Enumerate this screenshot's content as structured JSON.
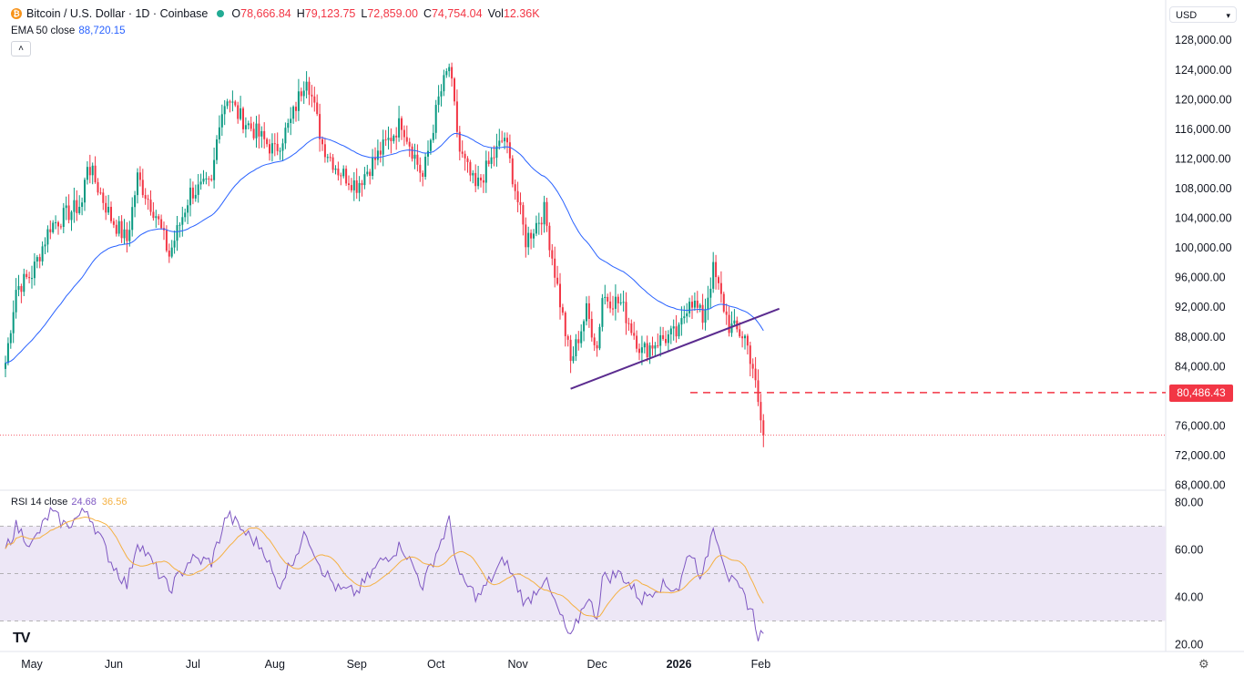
{
  "header": {
    "symbol_line": "Bitcoin / U.S. Dollar · 1D · Coinbase",
    "open_label": "O",
    "open": "78,666.84",
    "high_label": "H",
    "high": "79,123.75",
    "low_label": "L",
    "low": "72,859.00",
    "close_label": "C",
    "close": "74,754.04",
    "vol_label": "Vol",
    "vol": "12.36K",
    "coin_icon": "bitcoin-icon"
  },
  "ema": {
    "label": "EMA 50 close",
    "value": "88,720.15"
  },
  "currency": {
    "label": "USD"
  },
  "rsi": {
    "label": "RSI 14 close",
    "value": "24.68",
    "ma_value": "36.56"
  },
  "price_tag": "80,486.43",
  "colors": {
    "up": "#089981",
    "down": "#f23645",
    "ema": "#2962ff",
    "rsi": "#7e57c2",
    "rsi_ma": "#f5b041",
    "trendline": "#5b2c8f",
    "rsi_band": "#ede7f6"
  },
  "chart_data": [
    {
      "type": "candlestick",
      "title": "Bitcoin / U.S. Dollar · 1D · Coinbase",
      "y_ticks": [
        "128,000.00",
        "124,000.00",
        "120,000.00",
        "116,000.00",
        "112,000.00",
        "108,000.00",
        "104,000.00",
        "100,000.00",
        "96,000.00",
        "92,000.00",
        "88,000.00",
        "84,000.00",
        "76,000.00",
        "72,000.00",
        "68,000.00"
      ],
      "ylim": [
        68000,
        128000
      ],
      "x_ticks": [
        "May",
        "Jun",
        "Jul",
        "Aug",
        "Sep",
        "Oct",
        "Nov",
        "Dec",
        "2026",
        "Feb"
      ],
      "anchors": [
        [
          "2025-04-21",
          84500
        ],
        [
          "2025-04-25",
          94500
        ],
        [
          "2025-05-01",
          96500
        ],
        [
          "2025-05-08",
          103000
        ],
        [
          "2025-05-12",
          104000
        ],
        [
          "2025-05-20",
          106000
        ],
        [
          "2025-05-22",
          111500
        ],
        [
          "2025-05-31",
          104000
        ],
        [
          "2025-06-06",
          101000
        ],
        [
          "2025-06-10",
          109500
        ],
        [
          "2025-06-17",
          104500
        ],
        [
          "2025-06-22",
          99000
        ],
        [
          "2025-06-30",
          107500
        ],
        [
          "2025-07-08",
          108500
        ],
        [
          "2025-07-11",
          117500
        ],
        [
          "2025-07-14",
          120500
        ],
        [
          "2025-07-18",
          118000
        ],
        [
          "2025-08-01",
          113000
        ],
        [
          "2025-08-07",
          117000
        ],
        [
          "2025-08-13",
          123500
        ],
        [
          "2025-08-19",
          114000
        ],
        [
          "2025-08-25",
          110500
        ],
        [
          "2025-09-01",
          108500
        ],
        [
          "2025-09-10",
          113000
        ],
        [
          "2025-09-18",
          117000
        ],
        [
          "2025-09-26",
          109500
        ],
        [
          "2025-10-02",
          120000
        ],
        [
          "2025-10-06",
          124500
        ],
        [
          "2025-10-10",
          113000
        ],
        [
          "2025-10-16",
          108000
        ],
        [
          "2025-10-27",
          115000
        ],
        [
          "2025-11-04",
          101000
        ],
        [
          "2025-11-11",
          105000
        ],
        [
          "2025-11-21",
          84500
        ],
        [
          "2025-11-27",
          91500
        ],
        [
          "2025-12-01",
          86500
        ],
        [
          "2025-12-03",
          93500
        ],
        [
          "2025-12-10",
          92500
        ],
        [
          "2025-12-18",
          86000
        ],
        [
          "2025-12-24",
          87500
        ],
        [
          "2026-01-01",
          88500
        ],
        [
          "2026-01-05",
          93500
        ],
        [
          "2026-01-10",
          90500
        ],
        [
          "2026-01-14",
          97000
        ],
        [
          "2026-01-20",
          89500
        ],
        [
          "2026-01-26",
          88000
        ],
        [
          "2026-01-29",
          84000
        ],
        [
          "2026-01-31",
          78600
        ],
        [
          "2026-02-02",
          74754
        ]
      ],
      "ema50_series": {
        "name": "EMA 50 close",
        "last": 88720.15
      },
      "trendline": [
        [
          "2025-11-21",
          81000
        ],
        [
          "2026-02-08",
          91800
        ]
      ],
      "support_level": 80486.43,
      "last_price_line": 74754.04
    },
    {
      "type": "line",
      "title": "RSI 14 close",
      "y_ticks": [
        "80.00",
        "60.00",
        "40.00",
        "20.00"
      ],
      "ylim": [
        20,
        80
      ],
      "bands": [
        30,
        50,
        70
      ],
      "series": [
        {
          "name": "RSI 14 close",
          "points": [
            [
              "2025-04-21",
              60
            ],
            [
              "2025-04-25",
              70
            ],
            [
              "2025-05-01",
              62
            ],
            [
              "2025-05-08",
              76
            ],
            [
              "2025-05-14",
              70
            ],
            [
              "2025-05-22",
              77
            ],
            [
              "2025-05-31",
              55
            ],
            [
              "2025-06-06",
              45
            ],
            [
              "2025-06-10",
              64
            ],
            [
              "2025-06-17",
              52
            ],
            [
              "2025-06-22",
              43
            ],
            [
              "2025-06-30",
              56
            ],
            [
              "2025-07-08",
              55
            ],
            [
              "2025-07-14",
              75
            ],
            [
              "2025-07-20",
              68
            ],
            [
              "2025-07-28",
              60
            ],
            [
              "2025-08-02",
              44
            ],
            [
              "2025-08-13",
              67
            ],
            [
              "2025-08-19",
              52
            ],
            [
              "2025-08-25",
              43
            ],
            [
              "2025-09-01",
              42
            ],
            [
              "2025-09-10",
              55
            ],
            [
              "2025-09-18",
              62
            ],
            [
              "2025-09-26",
              45
            ],
            [
              "2025-10-06",
              72
            ],
            [
              "2025-10-10",
              48
            ],
            [
              "2025-10-17",
              40
            ],
            [
              "2025-10-27",
              56
            ],
            [
              "2025-11-04",
              37
            ],
            [
              "2025-11-11",
              48
            ],
            [
              "2025-11-21",
              22
            ],
            [
              "2025-11-27",
              40
            ],
            [
              "2025-12-01",
              32
            ],
            [
              "2025-12-03",
              48
            ],
            [
              "2025-12-10",
              50
            ],
            [
              "2025-12-18",
              39
            ],
            [
              "2025-12-24",
              45
            ],
            [
              "2026-01-01",
              44
            ],
            [
              "2026-01-05",
              60
            ],
            [
              "2026-01-10",
              48
            ],
            [
              "2026-01-14",
              71
            ],
            [
              "2026-01-20",
              48
            ],
            [
              "2026-01-26",
              40
            ],
            [
              "2026-01-29",
              33
            ],
            [
              "2026-01-31",
              24
            ],
            [
              "2026-02-02",
              24.68
            ]
          ]
        },
        {
          "name": "RSI-based MA",
          "last": 36.56
        }
      ]
    }
  ]
}
